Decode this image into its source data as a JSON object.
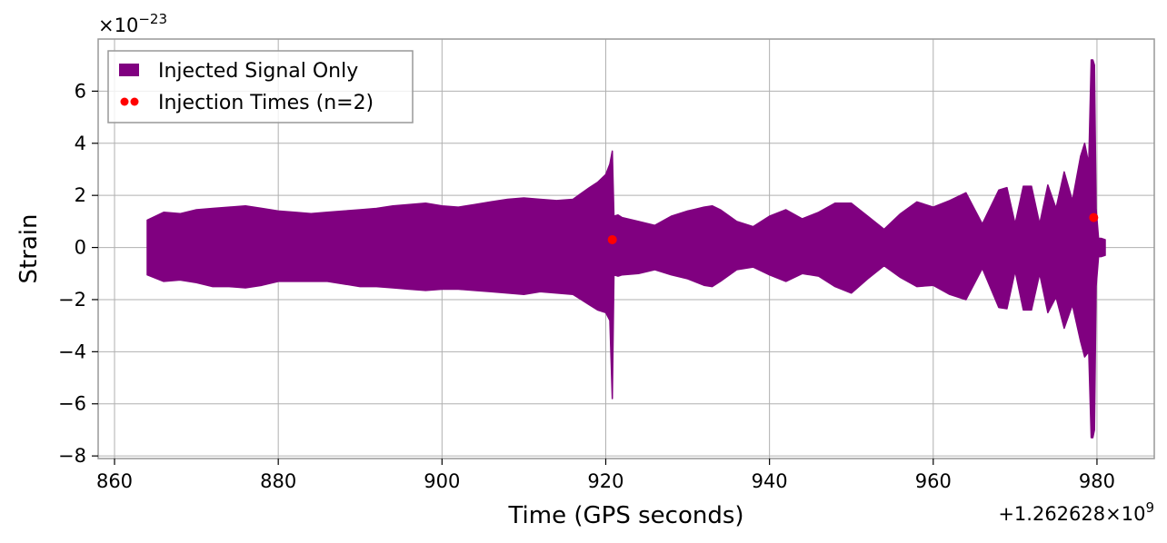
{
  "chart_data": {
    "type": "line",
    "title": "",
    "xlabel": "Time (GPS seconds)",
    "ylabel": "Strain",
    "xlim": [
      858,
      987
    ],
    "ylim": [
      -8.1,
      8
    ],
    "x_ticks": [
      860,
      880,
      900,
      920,
      940,
      960,
      980
    ],
    "x_tick_labels": [
      "860",
      "880",
      "900",
      "920",
      "940",
      "960",
      "980"
    ],
    "y_ticks": [
      -8,
      -6,
      -4,
      -2,
      0,
      2,
      4,
      6
    ],
    "y_tick_labels": [
      "−8",
      "−6",
      "−4",
      "−2",
      "0",
      "2",
      "4",
      "6"
    ],
    "x_offset_base": "+1.262628",
    "x_offset_exp": "9",
    "y_scale_base": "×10",
    "y_scale_exp": "−23",
    "grid": true,
    "legend_position": "top-left",
    "series": [
      {
        "name": "Injected Signal Only",
        "kind": "envelope",
        "color": "#800080",
        "x": [
          864,
          866,
          868,
          870,
          872,
          874,
          876,
          878,
          880,
          882,
          884,
          886,
          888,
          890,
          892,
          894,
          896,
          898,
          900,
          902,
          904,
          906,
          908,
          910,
          912,
          914,
          916,
          918,
          919,
          920,
          920.5,
          920.8,
          921.0,
          921.5,
          922,
          924,
          926,
          928,
          930,
          932,
          933,
          934,
          936,
          938,
          940,
          942,
          944,
          946,
          948,
          950,
          952,
          954,
          956,
          958,
          960,
          962,
          964,
          966,
          968,
          969,
          970,
          971,
          972,
          973,
          974,
          975,
          976,
          977,
          978,
          978.5,
          979,
          979.3,
          979.5,
          979.7,
          979.9,
          980.2,
          980.5,
          981.0
        ],
        "upper": [
          1.05,
          1.35,
          1.3,
          1.45,
          1.5,
          1.55,
          1.6,
          1.5,
          1.4,
          1.35,
          1.3,
          1.35,
          1.4,
          1.45,
          1.5,
          1.6,
          1.65,
          1.7,
          1.6,
          1.55,
          1.65,
          1.75,
          1.85,
          1.9,
          1.85,
          1.8,
          1.85,
          2.3,
          2.5,
          2.8,
          3.2,
          3.7,
          1.2,
          1.25,
          1.15,
          1.0,
          0.85,
          1.2,
          1.4,
          1.55,
          1.6,
          1.45,
          1.0,
          0.8,
          1.2,
          1.45,
          1.1,
          1.35,
          1.7,
          1.7,
          1.2,
          0.7,
          1.3,
          1.75,
          1.55,
          1.8,
          2.1,
          0.9,
          2.2,
          2.3,
          0.9,
          2.35,
          2.35,
          0.9,
          2.4,
          1.5,
          2.9,
          1.8,
          3.5,
          4.0,
          3.2,
          7.2,
          7.2,
          7.0,
          1.5,
          0.35,
          0.35,
          0.3
        ],
        "lower": [
          -1.05,
          -1.3,
          -1.25,
          -1.35,
          -1.5,
          -1.5,
          -1.55,
          -1.45,
          -1.3,
          -1.3,
          -1.3,
          -1.3,
          -1.4,
          -1.5,
          -1.5,
          -1.55,
          -1.6,
          -1.65,
          -1.6,
          -1.6,
          -1.65,
          -1.7,
          -1.75,
          -1.8,
          -1.7,
          -1.75,
          -1.8,
          -2.2,
          -2.4,
          -2.5,
          -2.8,
          -5.8,
          -1.05,
          -1.1,
          -1.05,
          -1.0,
          -0.85,
          -1.05,
          -1.2,
          -1.45,
          -1.5,
          -1.3,
          -0.85,
          -0.75,
          -1.05,
          -1.3,
          -1.0,
          -1.1,
          -1.5,
          -1.75,
          -1.2,
          -0.7,
          -1.15,
          -1.5,
          -1.45,
          -1.8,
          -2.0,
          -0.8,
          -2.3,
          -2.35,
          -0.9,
          -2.4,
          -2.4,
          -1.0,
          -2.5,
          -1.9,
          -3.1,
          -2.2,
          -3.6,
          -4.2,
          -4.0,
          -7.3,
          -7.3,
          -7.0,
          -1.5,
          -0.35,
          -0.35,
          -0.3
        ]
      },
      {
        "name": "Injection Times (n=2)",
        "kind": "scatter",
        "color": "#ff0000",
        "x": [
          920.8,
          979.6
        ],
        "y": [
          0.3,
          1.15
        ]
      }
    ]
  }
}
